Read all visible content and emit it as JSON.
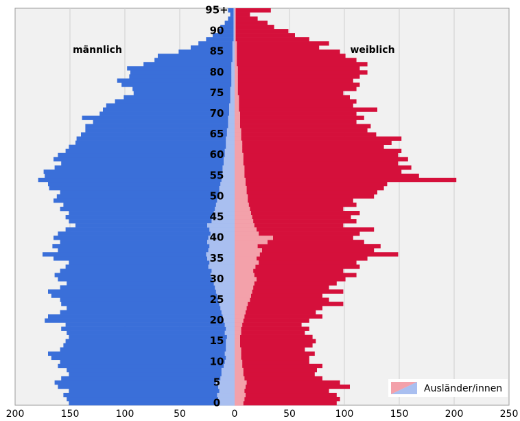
{
  "chart_data": {
    "type": "pyramid",
    "categories": [
      "0",
      null,
      null,
      null,
      null,
      "5",
      null,
      null,
      null,
      null,
      "10",
      null,
      null,
      null,
      null,
      "15",
      null,
      null,
      null,
      null,
      "20",
      null,
      null,
      null,
      null,
      "25",
      null,
      null,
      null,
      null,
      "30",
      null,
      null,
      null,
      null,
      "35",
      null,
      null,
      null,
      null,
      "40",
      null,
      null,
      null,
      null,
      "45",
      null,
      null,
      null,
      null,
      "50",
      null,
      null,
      null,
      null,
      "55",
      null,
      null,
      null,
      null,
      "60",
      null,
      null,
      null,
      null,
      "65",
      null,
      null,
      null,
      null,
      "70",
      null,
      null,
      null,
      null,
      "75",
      null,
      null,
      null,
      null,
      "80",
      null,
      null,
      null,
      null,
      "85",
      null,
      null,
      null,
      null,
      "90",
      null,
      null,
      null,
      null,
      "95+"
    ],
    "series": [
      {
        "name": "männlich",
        "side": "left",
        "color": "#3a6fd9",
        "values": [
          151,
          153,
          156,
          151,
          161,
          164,
          158,
          151,
          153,
          161,
          159,
          167,
          170,
          159,
          156,
          154,
          151,
          153,
          158,
          154,
          173,
          170,
          159,
          153,
          158,
          159,
          167,
          170,
          159,
          153,
          161,
          164,
          159,
          154,
          151,
          165,
          175,
          161,
          166,
          159,
          165,
          161,
          154,
          145,
          151,
          154,
          151,
          159,
          156,
          165,
          162,
          159,
          169,
          170,
          179,
          173,
          174,
          164,
          158,
          165,
          161,
          154,
          151,
          145,
          144,
          140,
          136,
          136,
          129,
          139,
          123,
          120,
          117,
          109,
          101,
          92,
          93,
          103,
          107,
          96,
          95,
          98,
          83,
          73,
          70,
          51,
          40,
          33,
          26,
          20,
          15,
          13,
          9,
          6,
          4,
          6
        ]
      },
      {
        "name": "weiblich",
        "side": "right",
        "color": "#d5103b",
        "values": [
          93,
          96,
          93,
          86,
          105,
          96,
          80,
          73,
          75,
          80,
          68,
          68,
          73,
          64,
          71,
          74,
          71,
          64,
          68,
          61,
          68,
          80,
          74,
          80,
          99,
          86,
          80,
          99,
          86,
          93,
          101,
          111,
          99,
          114,
          111,
          121,
          149,
          127,
          133,
          118,
          108,
          114,
          127,
          99,
          111,
          106,
          114,
          99,
          111,
          108,
          127,
          130,
          136,
          139,
          202,
          168,
          152,
          161,
          149,
          158,
          149,
          152,
          136,
          143,
          152,
          129,
          121,
          124,
          111,
          118,
          111,
          130,
          108,
          111,
          105,
          99,
          111,
          114,
          108,
          114,
          121,
          114,
          121,
          111,
          101,
          96,
          77,
          86,
          68,
          55,
          49,
          36,
          30,
          21,
          14,
          33
        ]
      }
    ],
    "foreign": {
      "name": "Ausländer/innen",
      "series": [
        {
          "side": "left",
          "color": "#a9bff0",
          "values": [
            14,
            15,
            16,
            14,
            15,
            17,
            13,
            12,
            12,
            10,
            9,
            8,
            9,
            8,
            8,
            8,
            7,
            9,
            8,
            9,
            10,
            11,
            12,
            13,
            14,
            15,
            16,
            17,
            18,
            19,
            20,
            22,
            21,
            24,
            23,
            25,
            26,
            24,
            23,
            25,
            24,
            22,
            23,
            25,
            21,
            20,
            19,
            18,
            17,
            16,
            15,
            14,
            14,
            13,
            12,
            12,
            11,
            11,
            10,
            10,
            9,
            9,
            8,
            8,
            8,
            7,
            7,
            6,
            6,
            6,
            5,
            5,
            5,
            4,
            4,
            4,
            4,
            3,
            3,
            3,
            3,
            3,
            3,
            2,
            2,
            2,
            2,
            2,
            1,
            1,
            1,
            1,
            1,
            1,
            1,
            1
          ]
        },
        {
          "side": "right",
          "color": "#f3a1aa",
          "values": [
            8,
            9,
            10,
            9,
            10,
            11,
            9,
            8,
            8,
            7,
            7,
            6,
            6,
            6,
            5,
            5,
            5,
            6,
            6,
            7,
            8,
            9,
            10,
            11,
            12,
            14,
            15,
            16,
            17,
            18,
            20,
            18,
            17,
            19,
            22,
            20,
            23,
            25,
            21,
            30,
            35,
            22,
            20,
            18,
            17,
            16,
            15,
            14,
            13,
            12,
            12,
            11,
            11,
            10,
            10,
            9,
            9,
            9,
            8,
            8,
            8,
            7,
            7,
            7,
            6,
            6,
            6,
            5,
            5,
            5,
            5,
            4,
            4,
            4,
            4,
            3,
            3,
            3,
            3,
            3,
            3,
            3,
            2,
            2,
            2,
            2,
            2,
            2,
            1,
            1,
            1,
            1,
            1,
            1,
            1,
            1
          ]
        }
      ]
    },
    "xlim": [
      -200,
      250
    ],
    "xticks": [
      {
        "value": -200,
        "label": "200"
      },
      {
        "value": -150,
        "label": "150"
      },
      {
        "value": -100,
        "label": "100"
      },
      {
        "value": -50,
        "label": "50"
      },
      0,
      50,
      100,
      150,
      200,
      250
    ],
    "grid": true,
    "legend": "lower right"
  }
}
